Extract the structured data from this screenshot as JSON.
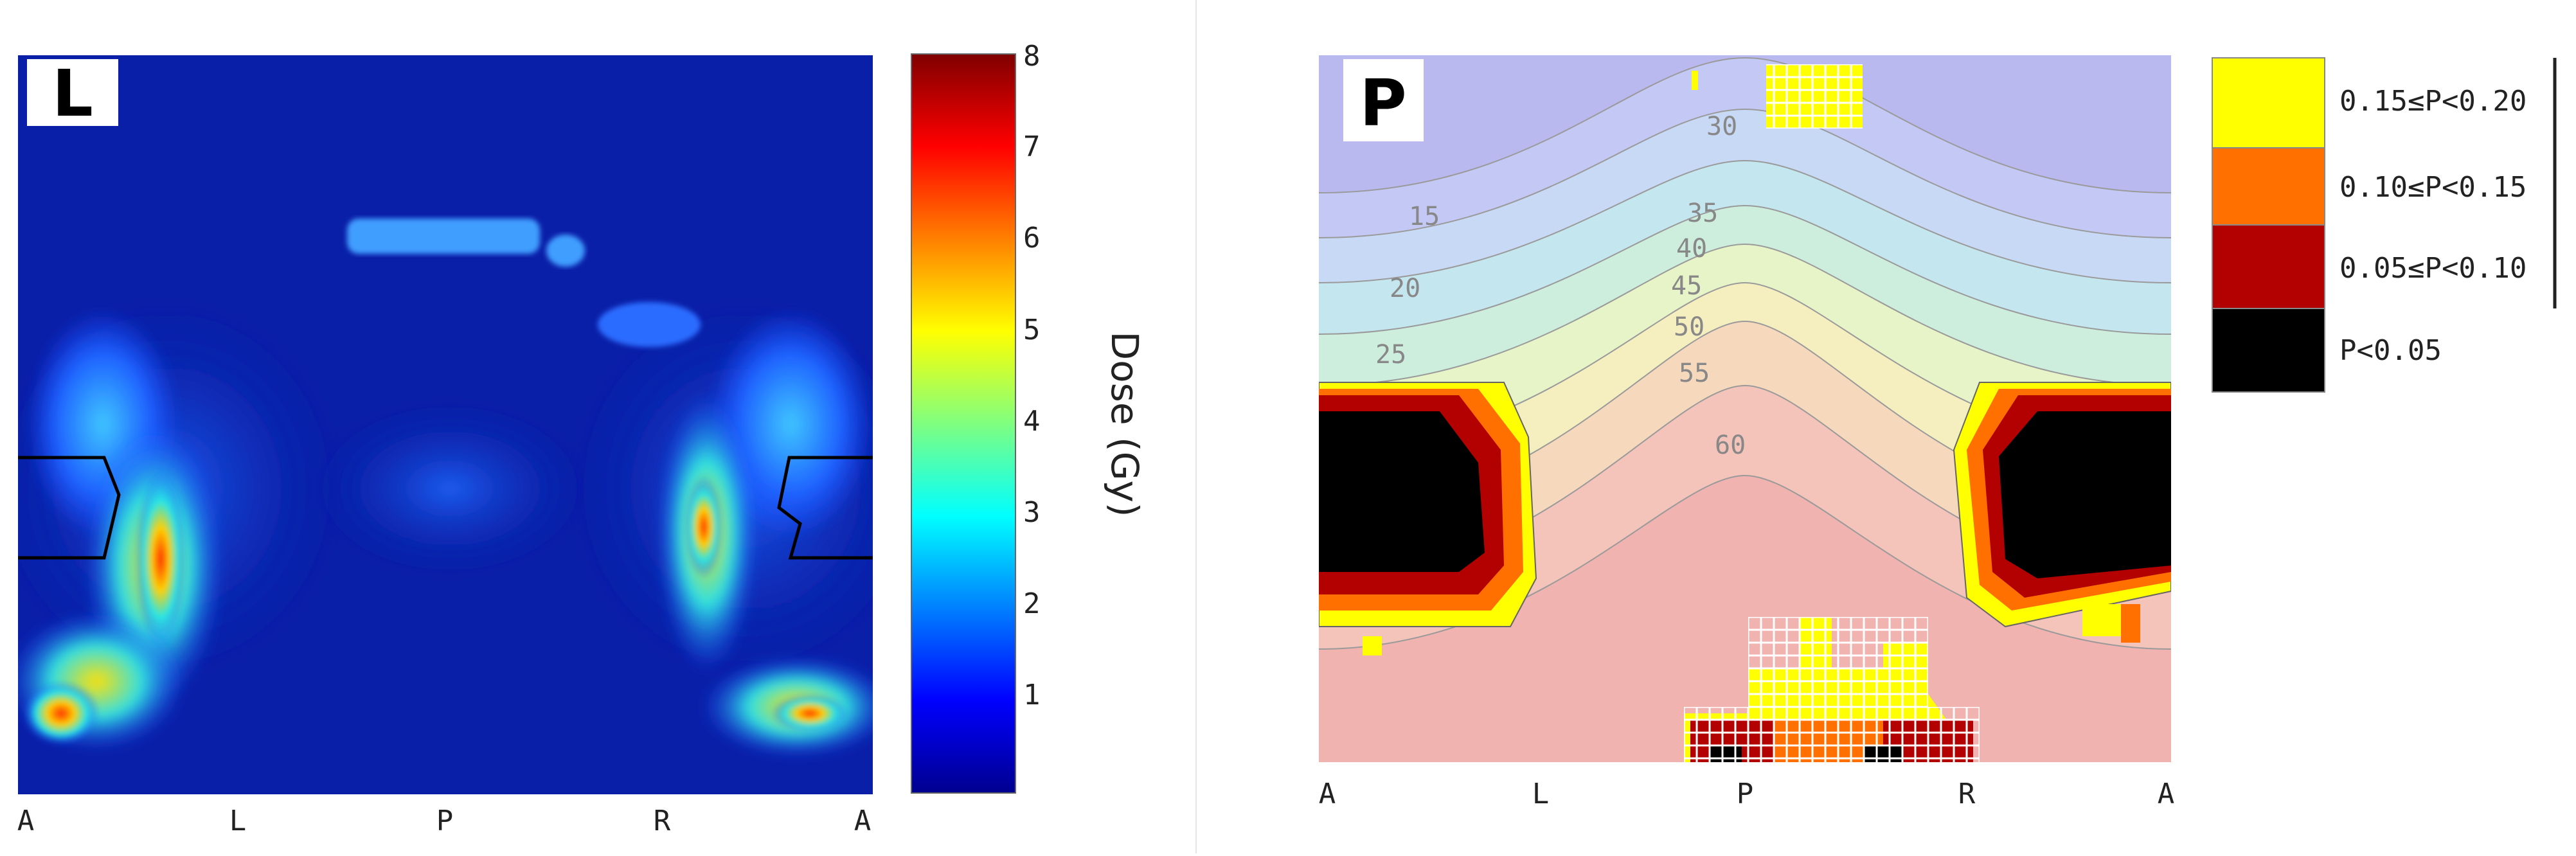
{
  "chart_data": [
    {
      "type": "heatmap",
      "panel_letter": "L",
      "x_ticks": [
        "A",
        "L",
        "P",
        "R",
        "A"
      ],
      "colorbar": {
        "label": "Dose (Gy)",
        "range": [
          0,
          8
        ],
        "ticks": [
          1,
          2,
          3,
          4,
          5,
          6,
          7,
          8
        ],
        "colormap": "jet"
      },
      "background_color": "#0a1fa8"
    },
    {
      "type": "heatmap",
      "panel_letter": "P",
      "x_ticks": [
        "A",
        "L",
        "P",
        "R",
        "A"
      ],
      "contour_labels": [
        "30",
        "35",
        "40",
        "45",
        "50",
        "55",
        "60",
        "15",
        "20",
        "25"
      ],
      "legend": [
        {
          "label": "0.15≤P<0.20",
          "color": "#ffff00"
        },
        {
          "label": "0.10≤P<0.15",
          "color": "#ff7000"
        },
        {
          "label": "0.05≤P<0.10",
          "color": "#b30000"
        },
        {
          "label": "P<0.05",
          "color": "#000000"
        }
      ]
    }
  ]
}
